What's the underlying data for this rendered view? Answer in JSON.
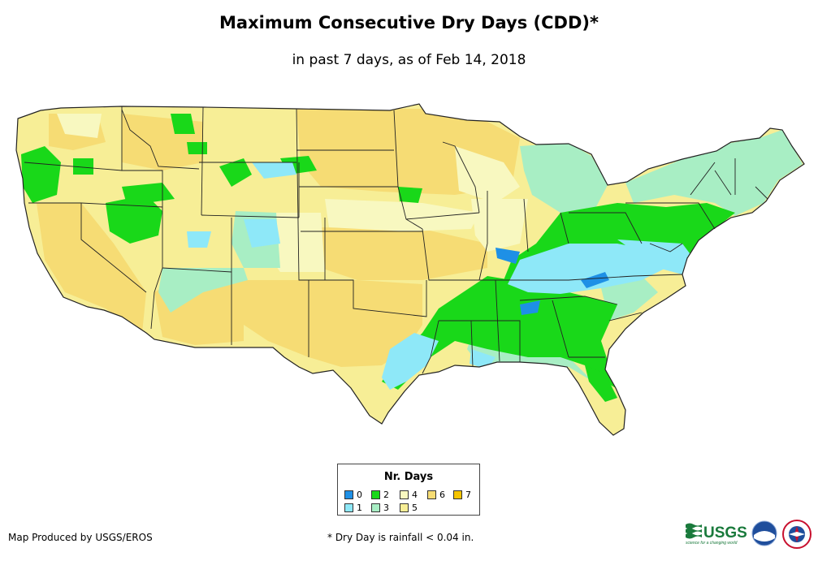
{
  "header": {
    "title": "Maximum Consecutive Dry Days (CDD)*",
    "subtitle": "in past 7 days, as of Feb 14, 2018"
  },
  "legend": {
    "title": "Nr. Days",
    "items": [
      {
        "label": "0",
        "color": "#1e90e6"
      },
      {
        "label": "1",
        "color": "#8ee8f8"
      },
      {
        "label": "2",
        "color": "#19d819"
      },
      {
        "label": "3",
        "color": "#a8eec4"
      },
      {
        "label": "4",
        "color": "#f8f8c0"
      },
      {
        "label": "5",
        "color": "#f7ee96"
      },
      {
        "label": "6",
        "color": "#f6dc74"
      },
      {
        "label": "7",
        "color": "#f5c400"
      }
    ]
  },
  "footer": {
    "credit": "Map Produced by USGS/EROS",
    "footnote": "* Dry Day is rainfall < 0.04 in.",
    "logo_text": "USGS",
    "logo_tagline": "science for a changing world"
  }
}
